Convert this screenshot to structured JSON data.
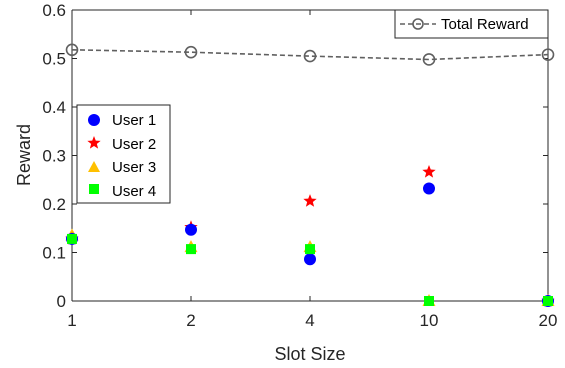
{
  "chart_data": {
    "type": "scatter",
    "xlabel": "Slot Size",
    "ylabel": "Reward",
    "categories": [
      "1",
      "2",
      "4",
      "10",
      "20"
    ],
    "ylim": [
      0,
      0.6
    ],
    "yticks": [
      "0",
      "0.1",
      "0.2",
      "0.3",
      "0.4",
      "0.5",
      "0.6"
    ],
    "grid": false,
    "series": [
      {
        "name": "User 1",
        "marker": "circle",
        "color": "#0000ff",
        "values": [
          0.128,
          0.147,
          0.086,
          0.232,
          0.0
        ]
      },
      {
        "name": "User 2",
        "marker": "star",
        "color": "#ff0000",
        "values": [
          0.128,
          0.152,
          0.206,
          0.266,
          0.0
        ]
      },
      {
        "name": "User 3",
        "marker": "triangle",
        "color": "#ffc000",
        "values": [
          0.135,
          0.111,
          0.111,
          0.0,
          0.0
        ]
      },
      {
        "name": "User 4",
        "marker": "square",
        "color": "#00ff00",
        "values": [
          0.128,
          0.107,
          0.107,
          0.0,
          0.0
        ]
      },
      {
        "name": "Total Reward",
        "marker": "open-circle",
        "line": "dashed",
        "color": "#808080",
        "values": [
          0.518,
          0.513,
          0.505,
          0.498,
          0.508
        ]
      }
    ],
    "legends": [
      {
        "placement": "top-right",
        "entries": [
          "Total Reward"
        ]
      },
      {
        "placement": "left-middle",
        "entries": [
          "User 1",
          "User 2",
          "User 3",
          "User 4"
        ]
      }
    ]
  }
}
